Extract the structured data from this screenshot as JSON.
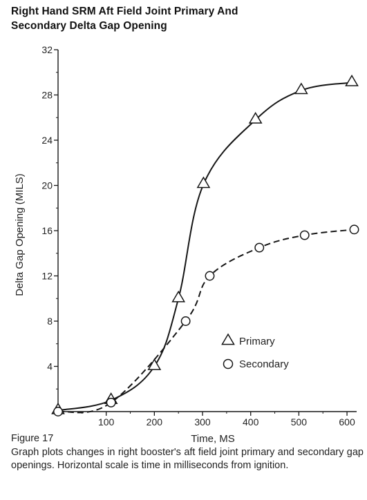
{
  "title_lines": [
    "Right Hand SRM Aft Field Joint Primary And",
    "Secondary Delta Gap Opening"
  ],
  "caption": {
    "figure": "Figure 17",
    "text": "Graph plots changes in right booster's aft field joint primary and secondary gap openings. Horizontal scale is time in milliseconds from ignition."
  },
  "chart_data": {
    "type": "line",
    "title": "Right Hand SRM Aft Field Joint Primary And Secondary Delta Gap Opening",
    "xlabel": "Time, MS",
    "ylabel": "Delta Gap Opening (MILS)",
    "xlim": [
      0,
      620
    ],
    "ylim": [
      0,
      32
    ],
    "xticks": [
      100,
      200,
      300,
      400,
      500,
      600
    ],
    "yticks": [
      4,
      8,
      12,
      16,
      20,
      24,
      28,
      32
    ],
    "grid": false,
    "legend_position": "center-right",
    "series": [
      {
        "name": "Primary",
        "marker": "triangle",
        "line_style": "solid",
        "x": [
          0,
          110,
          200,
          250,
          302,
          410,
          505,
          610
        ],
        "y": [
          0.1,
          1.0,
          4.0,
          10.0,
          20.1,
          25.8,
          28.4,
          29.1
        ]
      },
      {
        "name": "Secondary",
        "marker": "circle",
        "line_style": "dashed",
        "x": [
          0,
          110,
          265,
          315,
          418,
          512,
          615
        ],
        "y": [
          0.0,
          0.8,
          8.0,
          12.0,
          14.5,
          15.6,
          16.1
        ]
      }
    ]
  }
}
